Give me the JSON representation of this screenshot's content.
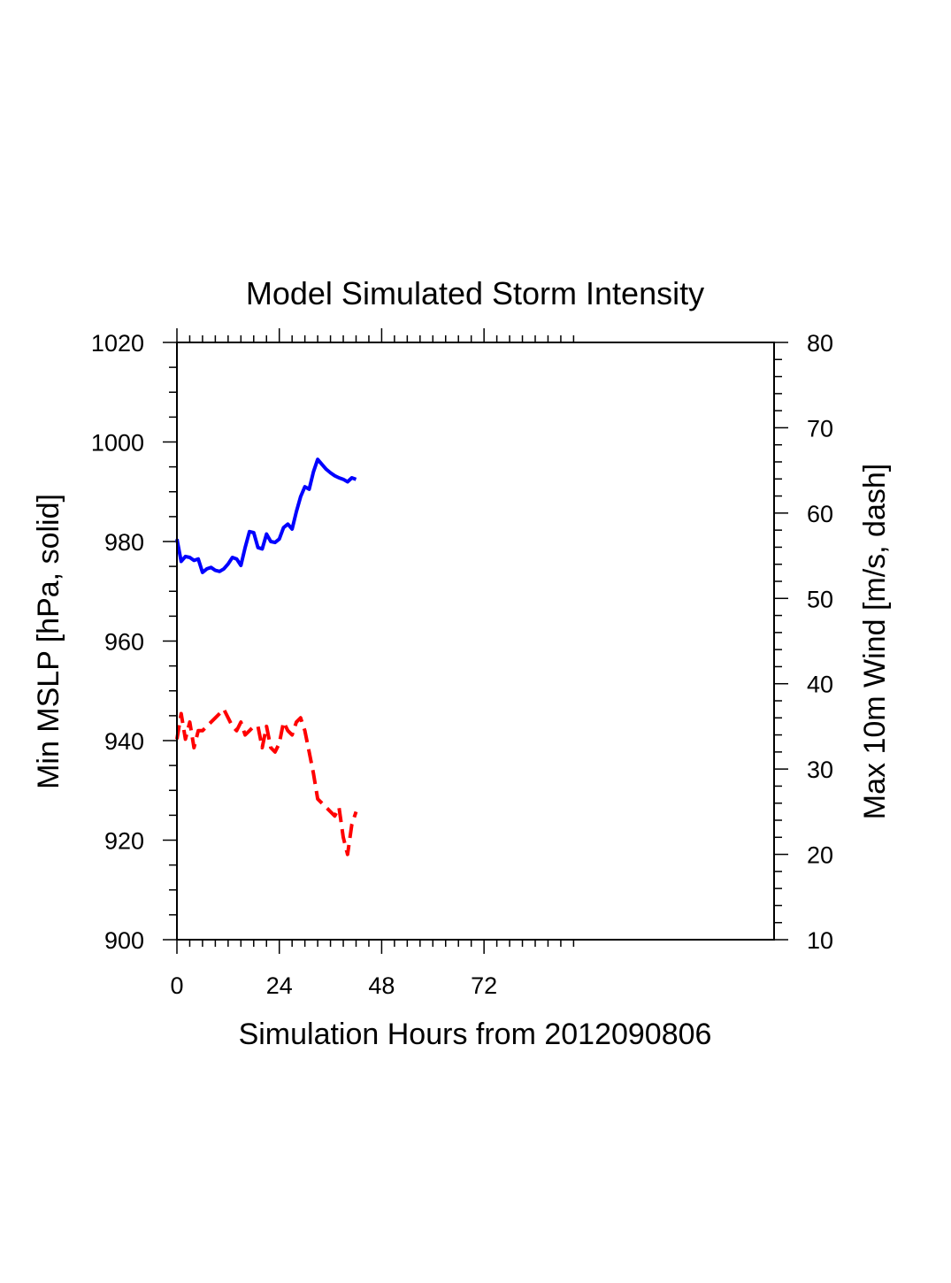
{
  "chart_data": {
    "type": "line",
    "title": "Model Simulated Storm Intensity",
    "xlabel": "Simulation Hours from 2012090806",
    "ylabel_left": "Min MSLP  [hPa, solid]",
    "ylabel_right": "Max 10m Wind  [m/s, dash]",
    "xlim": [
      0,
      140
    ],
    "ylim_left": [
      900,
      1020
    ],
    "ylim_right": [
      10,
      80
    ],
    "x_ticks": [
      0,
      24,
      48,
      72
    ],
    "x_tick_labels": [
      "0",
      "24",
      "48",
      "72"
    ],
    "y_left_ticks": [
      900,
      920,
      940,
      960,
      980,
      1000,
      1020
    ],
    "y_left_tick_labels": [
      "900",
      "920",
      "940",
      "960",
      "980",
      "1000",
      "1020"
    ],
    "y_right_ticks": [
      10,
      20,
      30,
      40,
      50,
      60,
      70,
      80
    ],
    "y_right_tick_labels": [
      "10",
      "20",
      "30",
      "40",
      "50",
      "60",
      "70",
      "80"
    ],
    "series": [
      {
        "name": "Min MSLP",
        "axis": "left",
        "style": "solid",
        "color": "#0000ff",
        "x": [
          0,
          1,
          2,
          3,
          4,
          5,
          6,
          7,
          8,
          9,
          10,
          11,
          12,
          13,
          14,
          15,
          16,
          17,
          18,
          19,
          20,
          21,
          22,
          23,
          24,
          25,
          26,
          27,
          28,
          29,
          30,
          31,
          32,
          33,
          34,
          35,
          36,
          37,
          38,
          39,
          40,
          41,
          42
        ],
        "values": [
          980.5,
          976.0,
          977.0,
          976.8,
          976.2,
          976.5,
          973.8,
          974.5,
          974.8,
          974.2,
          974.0,
          974.5,
          975.5,
          976.8,
          976.5,
          975.2,
          978.8,
          982.0,
          981.8,
          978.8,
          978.5,
          981.5,
          980.0,
          979.8,
          980.5,
          982.8,
          983.5,
          982.5,
          986.0,
          989.0,
          991.0,
          990.5,
          994.0,
          996.5,
          995.5,
          994.5,
          993.8,
          993.2,
          992.8,
          992.5,
          992.0,
          992.8,
          992.5
        ]
      },
      {
        "name": "Max 10m Wind",
        "axis": "right",
        "style": "dashed",
        "color": "#ff0000",
        "x": [
          0,
          1,
          2,
          3,
          4,
          5,
          6,
          7,
          8,
          9,
          10,
          11,
          12,
          13,
          14,
          15,
          16,
          17,
          18,
          19,
          20,
          21,
          22,
          23,
          24,
          25,
          26,
          27,
          28,
          29,
          30,
          31,
          32,
          33,
          34,
          35,
          36,
          37,
          38,
          39,
          40,
          41,
          42
        ],
        "values": [
          33.5,
          36.5,
          33.5,
          35.5,
          32.5,
          34.5,
          34.5,
          35.0,
          35.5,
          36.0,
          36.5,
          37.0,
          36.0,
          35.0,
          34.5,
          35.5,
          34.0,
          34.5,
          35.0,
          35.0,
          32.5,
          35.0,
          32.5,
          32.0,
          33.0,
          35.5,
          34.5,
          34.0,
          35.5,
          36.0,
          34.5,
          32.0,
          29.5,
          26.5,
          26.0,
          25.5,
          25.0,
          24.5,
          25.5,
          22.0,
          20.0,
          23.5,
          25.0
        ]
      }
    ]
  }
}
